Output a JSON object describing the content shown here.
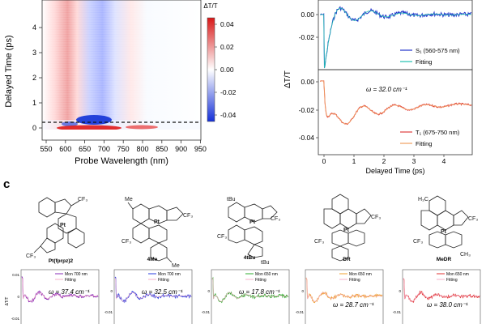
{
  "heatmap": {
    "ylabel": "Delayed Time (ps)",
    "xlabel": "Probe Wavelength (nm)",
    "xticks": [
      "550",
      "600",
      "650",
      "700",
      "750",
      "800",
      "850",
      "900",
      "950"
    ],
    "yticks": [
      "0",
      "1",
      "2",
      "3",
      "4"
    ],
    "colorbar_label": "ΔT/T",
    "colorbar_ticks": [
      "0.04",
      "0.02",
      "0.00",
      "-0.02",
      "-0.04"
    ]
  },
  "kinetics": {
    "ylabel": "ΔT/T",
    "xlabel": "Delayed Time (ps)",
    "xticks": [
      "0",
      "1",
      "2",
      "3",
      "4"
    ],
    "top_yticks": [
      "0.00",
      "-0.02"
    ],
    "bottom_yticks": [
      "0.00",
      "-0.02",
      "-0.04"
    ],
    "top_legend": [
      "S₁ (560-575 nm)",
      "Fitting"
    ],
    "bottom_legend": [
      "T₁ (675-750 nm)",
      "Fitting"
    ],
    "omega_label": "ω = 32.0  cm⁻¹",
    "colors": {
      "s1": "#2233cc",
      "fit_top": "#22c0b0",
      "t1": "#e04040",
      "fit_bottom": "#f0a060"
    }
  },
  "panel_c": {
    "label": "c",
    "compounds": [
      {
        "name": "Pt(fprpz)2",
        "mon": "Mon 700 nm",
        "fit": "Fitting",
        "omega": "ω = 37.4 cm⁻¹",
        "color": "#8a2bb8"
      },
      {
        "name": "4Me",
        "mon": "Mon 700 nm",
        "fit": "Fitting",
        "omega": "ω = 32.5 cm⁻¹",
        "color": "#2a3de0"
      },
      {
        "name": "4tBu",
        "mon": "Mon 650 nm",
        "fit": "Fitting",
        "omega": "ω = 17.8 cm⁻¹",
        "color": "#2fae2f"
      },
      {
        "name": "DR",
        "mon": "Mon 650 nm",
        "fit": "Fitting",
        "omega": "ω = 28.7 cm⁻¹",
        "color": "#f0a030"
      },
      {
        "name": "MeDR",
        "mon": "Mon 650 nm",
        "fit": "Fitting",
        "omega": "ω = 38.0 cm⁻¹",
        "color": "#e03030"
      }
    ],
    "first_ylabel": "ΔT/T",
    "first_yticks": [
      "0.01",
      "0",
      "-0.01"
    ],
    "mini_yticks": [
      "0",
      "-0.01"
    ],
    "substituents": {
      "cf3": "CF₃",
      "me": "Me",
      "tbu": "tBu",
      "h3c": "H₃C",
      "ch3": "CH₃",
      "pt": "Pt"
    }
  }
}
